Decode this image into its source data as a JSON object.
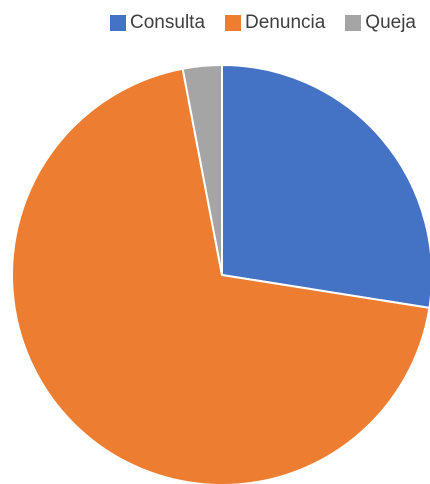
{
  "chart_data": {
    "type": "pie",
    "title": "",
    "categories": [
      "Consulta",
      "Denuncia",
      "Queja"
    ],
    "values": [
      27.5,
      69.5,
      3.0
    ],
    "colors": [
      "#4472C4",
      "#ED7D31",
      "#A5A5A5"
    ],
    "legend": "top-right",
    "start_angle_deg": 0,
    "direction": "clockwise"
  }
}
